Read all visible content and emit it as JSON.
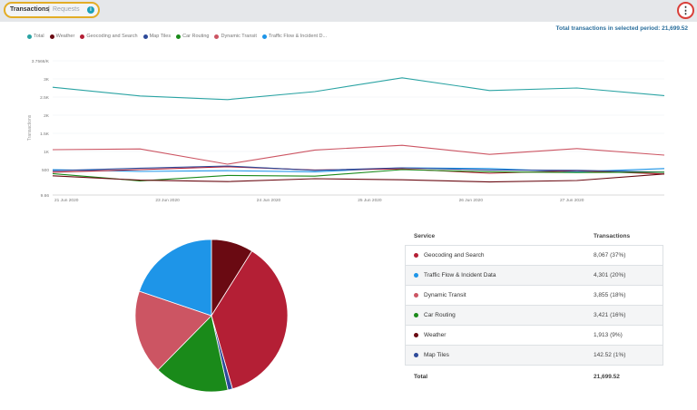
{
  "tabs": {
    "active": "Transactions",
    "separator": "|",
    "inactive": "Requests",
    "info_icon": "i"
  },
  "menu_icon": "⋮",
  "total_label": "Total transactions in selected period: 21,699.52",
  "legend": [
    {
      "label": "Total",
      "color": "#2aa3a3"
    },
    {
      "label": "Weather",
      "color": "#6a0a12"
    },
    {
      "label": "Geocoding and Search",
      "color": "#b41f35"
    },
    {
      "label": "Map Tiles",
      "color": "#2d4a99"
    },
    {
      "label": "Car Routing",
      "color": "#1a8a1a"
    },
    {
      "label": "Dynamic Transit",
      "color": "#cc5563"
    },
    {
      "label": "Traffic Flow & Incident D...",
      "color": "#1e95e8"
    }
  ],
  "chart_data": [
    {
      "type": "line",
      "ylabel": "Transactions",
      "ylim": [
        -200,
        3500
      ],
      "y_ticks": [
        "3.7566/K",
        "3K",
        "2.5K",
        "2K",
        "1.5K",
        "1K",
        "500",
        "9.66"
      ],
      "x_ticks": [
        "21 Jun 2020",
        "23 Jun 2020",
        "24 Jun 2020",
        "25 Jun 2020",
        "26 Jun 2020",
        "27 Jun 2020"
      ],
      "series": [
        {
          "name": "Total",
          "color": "#2aa3a3",
          "values": [
            2770,
            2530,
            2430,
            2650,
            3030,
            2680,
            2750,
            2540
          ]
        },
        {
          "name": "Dynamic Transit",
          "color": "#cc5563",
          "values": [
            1050,
            1070,
            650,
            1040,
            1170,
            920,
            1080,
            900
          ]
        },
        {
          "name": "Traffic Flow & Incident D...",
          "color": "#1e95e8",
          "values": [
            500,
            450,
            470,
            440,
            550,
            530,
            440,
            530
          ]
        },
        {
          "name": "Geocoding and Search",
          "color": "#b41f35",
          "values": [
            430,
            500,
            580,
            490,
            520,
            400,
            470,
            380
          ]
        },
        {
          "name": "Map Tiles",
          "color": "#2d4a99",
          "values": [
            470,
            540,
            600,
            480,
            550,
            490,
            480,
            430
          ]
        },
        {
          "name": "Car Routing",
          "color": "#1a8a1a",
          "values": [
            390,
            190,
            340,
            320,
            500,
            440,
            420,
            430
          ]
        },
        {
          "name": "Weather",
          "color": "#6a0a12",
          "values": [
            330,
            210,
            170,
            250,
            220,
            160,
            200,
            380
          ]
        }
      ]
    },
    {
      "type": "pie",
      "slices": [
        {
          "name": "Weather",
          "value": 9,
          "color": "#6a0a12"
        },
        {
          "name": "Geocoding and Search",
          "value": 37,
          "color": "#b41f35"
        },
        {
          "name": "Map Tiles",
          "value": 1,
          "color": "#2d4a99"
        },
        {
          "name": "Car Routing",
          "value": 16,
          "color": "#1a8a1a"
        },
        {
          "name": "Dynamic Transit",
          "value": 18,
          "color": "#cc5563"
        },
        {
          "name": "Traffic Flow & Incident Data",
          "value": 20,
          "color": "#1e95e8"
        }
      ]
    }
  ],
  "table": {
    "headers": [
      "Service",
      "Transactions"
    ],
    "rows": [
      {
        "service": "Geocoding and Search",
        "value": "8,067 (37%)",
        "color": "#b41f35"
      },
      {
        "service": "Traffic Flow & Incident Data",
        "value": "4,301 (20%)",
        "color": "#1e95e8"
      },
      {
        "service": "Dynamic Transit",
        "value": "3,855 (18%)",
        "color": "#cc5563"
      },
      {
        "service": "Car Routing",
        "value": "3,421 (16%)",
        "color": "#1a8a1a"
      },
      {
        "service": "Weather",
        "value": "1,913 (9%)",
        "color": "#6a0a12"
      },
      {
        "service": "Map Tiles",
        "value": "142.52 (1%)",
        "color": "#2d4a99"
      }
    ],
    "total_label": "Total",
    "total_value": "21,699.52"
  }
}
